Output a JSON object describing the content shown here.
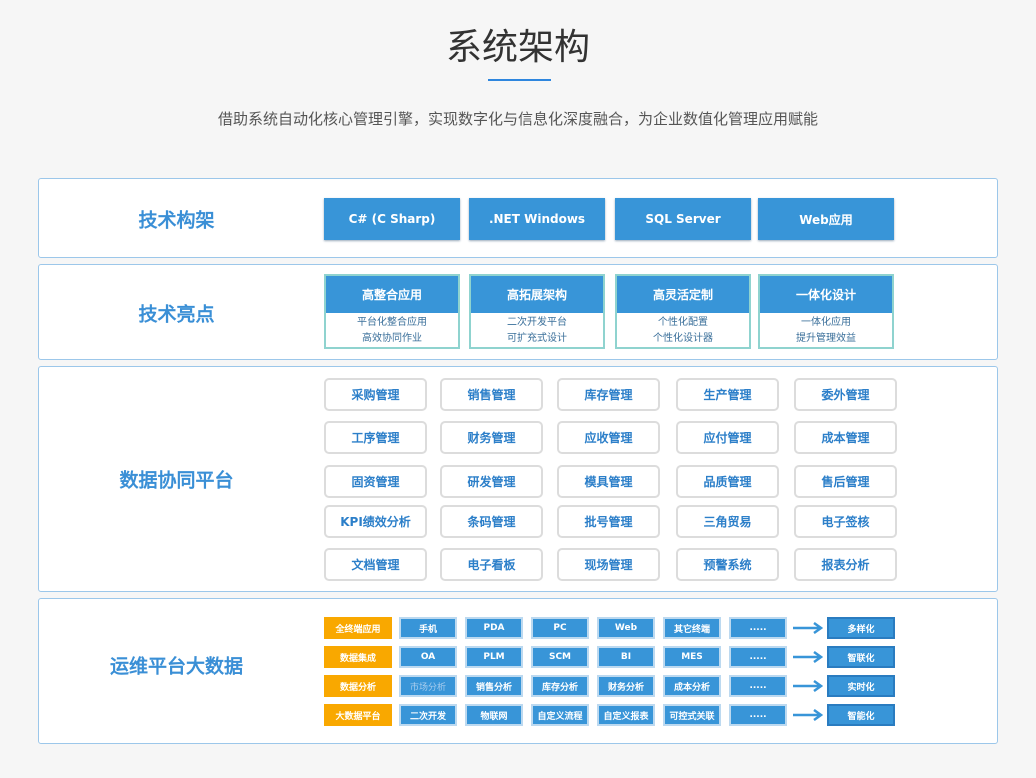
{
  "header": {
    "title": "系统架构",
    "subtitle": "借助系统自动化核心管理引擎，实现数字化与信息化深度融合，为企业数值化管理应用赋能"
  },
  "tech_framework": {
    "label": "技术构架",
    "items": [
      "C#  (C Sharp)",
      ".NET Windows",
      "SQL Server",
      "Web应用"
    ]
  },
  "tech_highlights": {
    "label": "技术亮点",
    "cards": [
      {
        "title": "高整合应用",
        "lines": [
          "平台化整合应用",
          "高效协同作业"
        ]
      },
      {
        "title": "高拓展架构",
        "lines": [
          "二次开发平台",
          "可扩充式设计"
        ]
      },
      {
        "title": "高灵活定制",
        "lines": [
          "个性化配置",
          "个性化设计器"
        ]
      },
      {
        "title": "一体化设计",
        "lines": [
          "一体化应用",
          "提升管理效益"
        ]
      }
    ]
  },
  "data_platform": {
    "label": "数据协同平台",
    "modules": [
      "采购管理",
      "销售管理",
      "库存管理",
      "生产管理",
      "委外管理",
      "工序管理",
      "财务管理",
      "应收管理",
      "应付管理",
      "成本管理",
      "固资管理",
      "研发管理",
      "模具管理",
      "品质管理",
      "售后管理",
      "KPI绩效分析",
      "条码管理",
      "批号管理",
      "三角贸易",
      "电子签核",
      "文档管理",
      "电子看板",
      "现场管理",
      "预警系统",
      "报表分析"
    ]
  },
  "ops_platform": {
    "label": "运维平台大数据",
    "rows": [
      {
        "category": "全终端应用",
        "cells": [
          "手机",
          "PDA",
          "PC",
          "Web",
          "其它终端",
          "....."
        ],
        "result": "多样化"
      },
      {
        "category": "数据集成",
        "cells": [
          "OA",
          "PLM",
          "SCM",
          "BI",
          "MES",
          "....."
        ],
        "result": "智联化"
      },
      {
        "category": "数据分析",
        "cells": [
          "市场分析",
          "销售分析",
          "库存分析",
          "财务分析",
          "成本分析",
          "....."
        ],
        "result": "实时化"
      },
      {
        "category": "大数据平台",
        "cells": [
          "二次开发",
          "物联网",
          "自定义流程",
          "自定义报表",
          "可控式关联",
          "....."
        ],
        "result": "智能化"
      }
    ]
  },
  "colors": {
    "primary": "#3895d8",
    "accent": "#f9a800",
    "label": "#3a8fd6"
  }
}
